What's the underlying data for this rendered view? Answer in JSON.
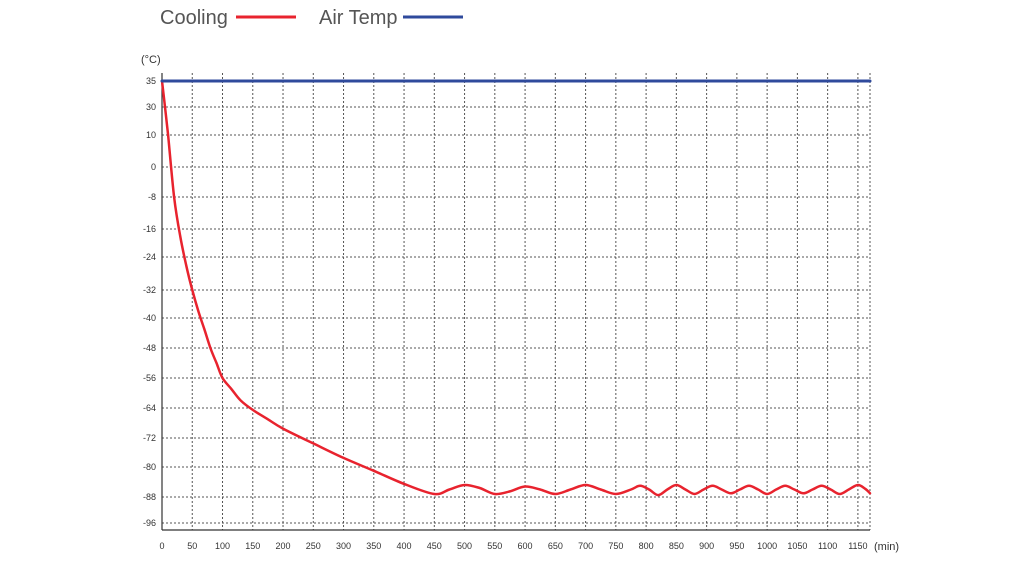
{
  "chart_data": {
    "type": "line",
    "title": "",
    "xlabel": "",
    "ylabel": "",
    "y_unit": "(°C)",
    "x_unit": "(min)",
    "legend_position": "top-left",
    "grid": true,
    "xlim": [
      0,
      1170
    ],
    "ylim": [
      -96,
      35
    ],
    "x_ticks": [
      0,
      50,
      100,
      150,
      200,
      250,
      300,
      350,
      400,
      450,
      500,
      550,
      600,
      650,
      700,
      750,
      800,
      850,
      900,
      950,
      1000,
      1050,
      1100,
      1150
    ],
    "y_ticks": [
      "35",
      "30",
      "10",
      "0",
      "-8",
      "-16",
      "-24",
      "-32",
      "-40",
      "-48",
      "-56",
      "-64",
      "-72",
      "-80",
      "-88",
      "-96"
    ],
    "series": [
      {
        "name": "Cooling",
        "color": "#e8232e",
        "points": [
          [
            0,
            35
          ],
          [
            5,
            30
          ],
          [
            10,
            10
          ],
          [
            20,
            -8
          ],
          [
            30,
            -18
          ],
          [
            40,
            -26
          ],
          [
            50,
            -32
          ],
          [
            60,
            -38
          ],
          [
            70,
            -43
          ],
          [
            80,
            -48
          ],
          [
            90,
            -52
          ],
          [
            100,
            -56
          ],
          [
            115,
            -59
          ],
          [
            130,
            -62
          ],
          [
            150,
            -64.5
          ],
          [
            175,
            -67
          ],
          [
            200,
            -69.5
          ],
          [
            250,
            -73.5
          ],
          [
            300,
            -77.5
          ],
          [
            350,
            -81
          ],
          [
            400,
            -84.5
          ],
          [
            450,
            -87.2
          ],
          [
            475,
            -86
          ],
          [
            500,
            -84.8
          ],
          [
            525,
            -85.6
          ],
          [
            550,
            -87.2
          ],
          [
            575,
            -86.5
          ],
          [
            600,
            -85.2
          ],
          [
            625,
            -86
          ],
          [
            650,
            -87.2
          ],
          [
            675,
            -86
          ],
          [
            700,
            -84.8
          ],
          [
            725,
            -86
          ],
          [
            750,
            -87.2
          ],
          [
            775,
            -86
          ],
          [
            790,
            -85
          ],
          [
            805,
            -86
          ],
          [
            820,
            -87.5
          ],
          [
            835,
            -86
          ],
          [
            850,
            -84.8
          ],
          [
            865,
            -86
          ],
          [
            880,
            -87.2
          ],
          [
            895,
            -86
          ],
          [
            910,
            -85
          ],
          [
            925,
            -86
          ],
          [
            940,
            -87
          ],
          [
            955,
            -86
          ],
          [
            970,
            -85
          ],
          [
            985,
            -86
          ],
          [
            1000,
            -87.2
          ],
          [
            1015,
            -86
          ],
          [
            1030,
            -85
          ],
          [
            1045,
            -86
          ],
          [
            1060,
            -87
          ],
          [
            1075,
            -86
          ],
          [
            1090,
            -85
          ],
          [
            1105,
            -86
          ],
          [
            1120,
            -87.2
          ],
          [
            1135,
            -86
          ],
          [
            1150,
            -84.8
          ],
          [
            1162,
            -85.8
          ],
          [
            1170,
            -87
          ]
        ]
      },
      {
        "name": "Air Temp",
        "color": "#2f4a9c",
        "points": [
          [
            0,
            35
          ],
          [
            1170,
            35
          ]
        ]
      }
    ]
  }
}
